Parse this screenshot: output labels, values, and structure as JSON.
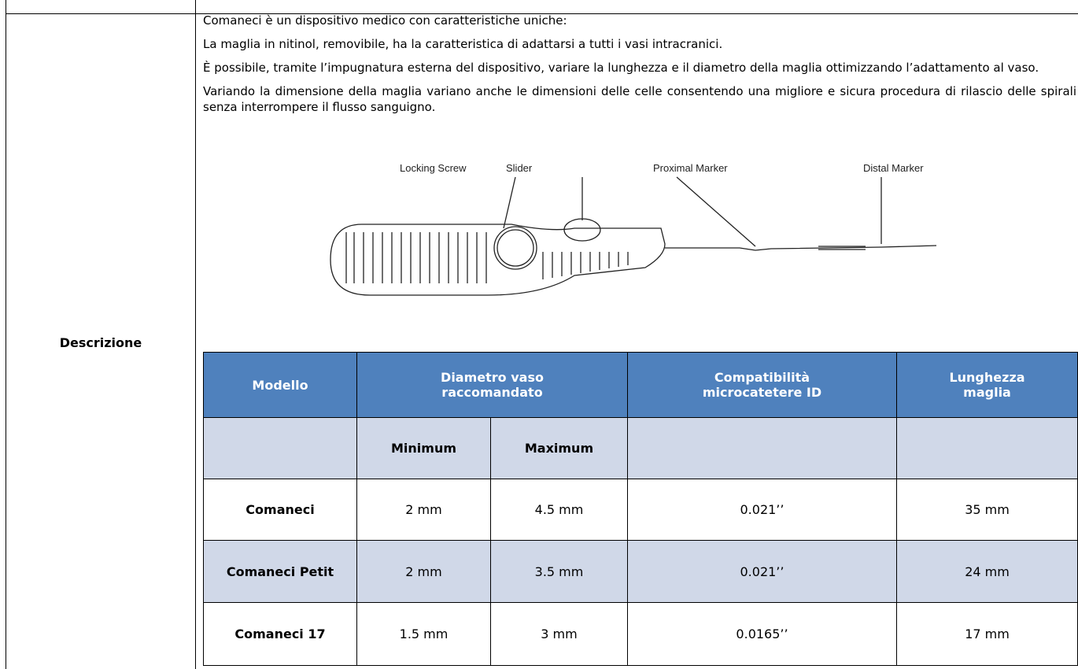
{
  "section_label": "Descrizione",
  "paragraphs": [
    "Comaneci è un dispositivo medico con caratteristiche uniche:",
    "La maglia in nitinol, removibile, ha la caratteristica di adattarsi a tutti i vasi intracranici.",
    "È possibile, tramite l’impugnatura esterna del dispositivo, variare la lunghezza e il diametro della maglia ottimizzando l’adattamento al vaso.",
    "Variando la dimensione della maglia variano anche le dimensioni delle celle consentendo una migliore e sicura procedura di rilascio delle spirali senza interrompere il flusso sanguigno."
  ],
  "figure": {
    "labels": [
      "Locking Screw",
      "Slider",
      "Proximal Marker",
      "Distal Marker"
    ]
  },
  "table": {
    "header": [
      "Modello",
      "Diametro vaso raccomandato",
      "Compatibilità microcatetere ID",
      "Lunghezza maglia"
    ],
    "subheader": [
      "Minimum",
      "Maximum"
    ],
    "rows": [
      [
        "Comaneci",
        "2 mm",
        "4.5 mm",
        "0.021’’",
        "35 mm"
      ],
      [
        "Comaneci Petit",
        "2 mm",
        "3.5 mm",
        "0.021’’",
        "24 mm"
      ],
      [
        "Comaneci 17",
        "1.5 mm",
        "3 mm",
        "0.0165’’",
        "17 mm"
      ]
    ]
  }
}
